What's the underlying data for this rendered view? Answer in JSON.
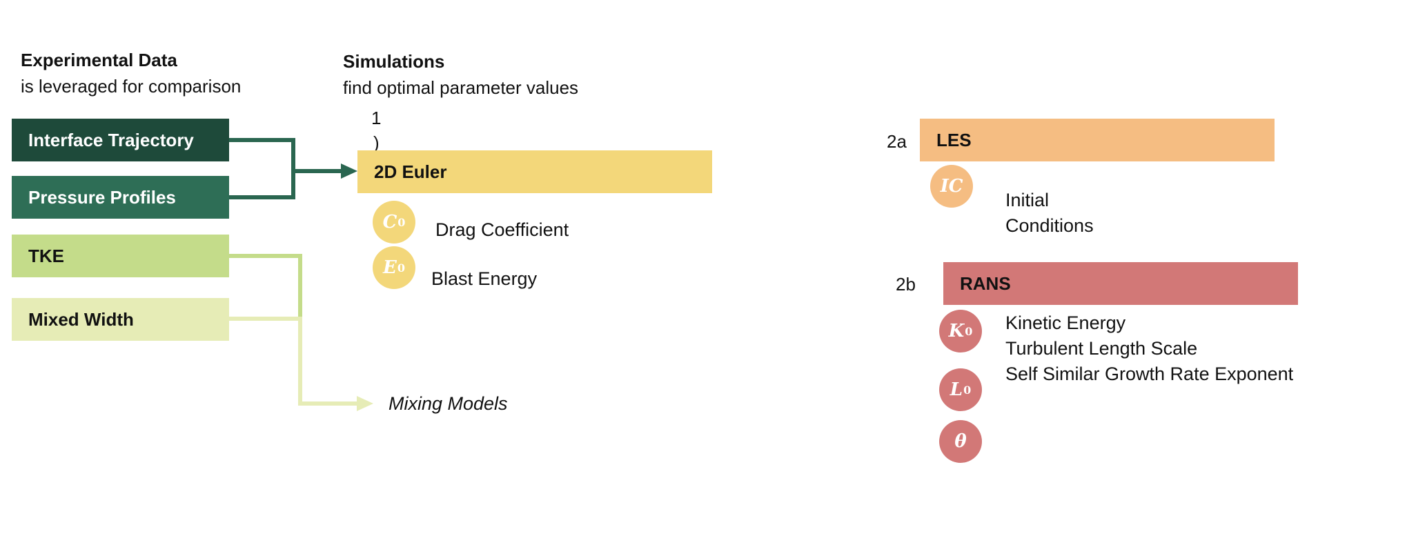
{
  "experimental": {
    "title": "Experimental Data",
    "subtitle": "is leveraged for comparison",
    "items": [
      "Interface Trajectory",
      "Pressure Profiles",
      "TKE",
      "Mixed Width"
    ]
  },
  "simulations": {
    "title": "Simulations",
    "subtitle": "find optimal parameter values",
    "step1_num": "1",
    "step1_paren": ")",
    "euler": {
      "label": "2D Euler",
      "params": [
        {
          "symbol": "C",
          "sub": "0",
          "label": "Drag Coefficient"
        },
        {
          "symbol": "E",
          "sub": "0",
          "label": "Blast Energy"
        }
      ]
    },
    "mixing_models": "Mixing Models"
  },
  "les": {
    "tag": "2a",
    "label": "LES",
    "param": {
      "symbol": "IC",
      "sub": ""
    },
    "desc_line1": "Initial",
    "desc_line2": "Conditions"
  },
  "rans": {
    "tag": "2b",
    "label": "RANS",
    "params": [
      {
        "symbol": "K",
        "sub": "0",
        "label": "Kinetic Energy"
      },
      {
        "symbol": "L",
        "sub": "0",
        "label": "Turbulent Length Scale"
      },
      {
        "symbol": "θ",
        "sub": "",
        "label": "Self Similar Growth Rate Exponent"
      }
    ]
  },
  "colors": {
    "dark_green": "#1e4a3a",
    "mid_green": "#2e6e56",
    "light_green": "#c4dc8a",
    "pale_green": "#e6ecb6",
    "yellow": "#f3d77a",
    "orange": "#f5bd82",
    "red": "#d27877"
  }
}
